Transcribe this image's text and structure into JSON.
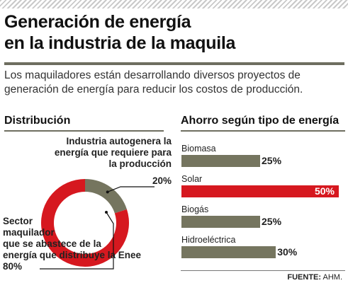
{
  "title": {
    "line1": "Generación de energía",
    "line2": "en la industria de la maquila"
  },
  "intro": "Los maquiladores están desarrollando diversos proyectos de generación de energía para reducir los costos de producción.",
  "colors": {
    "red": "#d6181f",
    "olive": "#75755f",
    "ink": "#111111"
  },
  "distribution": {
    "heading": "Distribución",
    "self_label_1": "Industria autogenera la",
    "self_label_2": "energía que requiere para",
    "self_label_3": "la producción",
    "self_pct": "20%",
    "sector_label_1": "Sector",
    "sector_label_2": "maquilador",
    "sector_label_3": "que se abastece de la",
    "sector_label_4": "energía que distribuye la Enee",
    "sector_pct": "80%"
  },
  "savings": {
    "heading": "Ahorro según tipo de energía",
    "value_labels": [
      "25%",
      "50%",
      "25%",
      "30%"
    ]
  },
  "source": {
    "label": "FUENTE:",
    "value": "AHM."
  },
  "chart_data": [
    {
      "type": "pie",
      "title": "Distribución",
      "categories": [
        "Industria autogenera la energía que requiere para la producción",
        "Sector maquilador que se abastece de la energía que distribuye la Enee"
      ],
      "values": [
        20,
        80
      ],
      "colors": [
        "#75755f",
        "#d6181f"
      ],
      "donut": true
    },
    {
      "type": "bar",
      "orientation": "horizontal",
      "title": "Ahorro según tipo de energía",
      "categories": [
        "Biomasa",
        "Solar",
        "Biogás",
        "Hidroeléctrica"
      ],
      "values": [
        25,
        50,
        25,
        30
      ],
      "unit": "%",
      "colors": [
        "#75755f",
        "#d6181f",
        "#75755f",
        "#75755f"
      ],
      "xlim": [
        0,
        50
      ],
      "grid": false
    }
  ]
}
